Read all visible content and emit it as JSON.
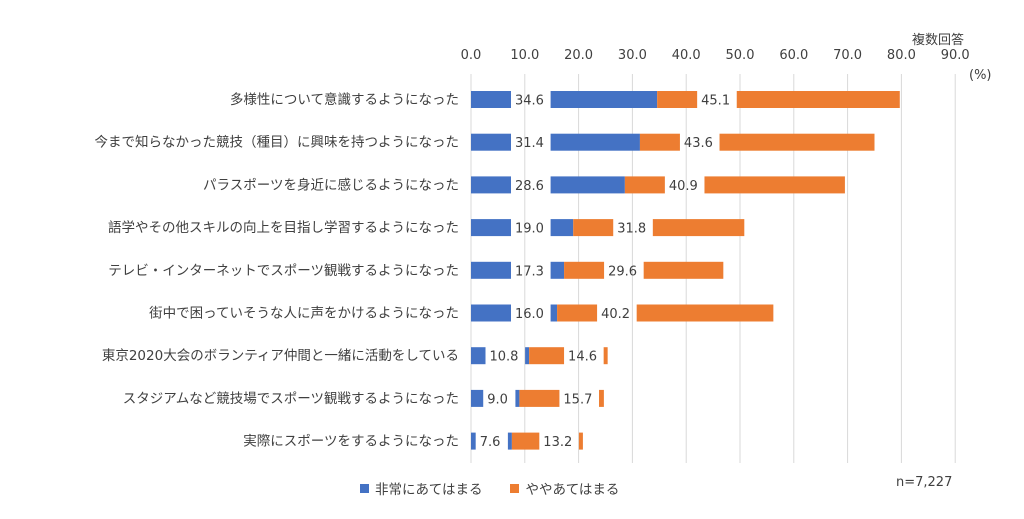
{
  "notes": {
    "multiple_answer": "複数回答",
    "unit": "(%)",
    "sample": "n=7,227"
  },
  "colors": {
    "series1": "#4472C4",
    "series2": "#ED7D31",
    "grid": "#D9D9D9"
  },
  "chart_data": {
    "type": "bar",
    "orientation": "horizontal",
    "stacked": true,
    "xlim": [
      0,
      90
    ],
    "xticks": [
      "0.0",
      "10.0",
      "20.0",
      "30.0",
      "40.0",
      "50.0",
      "60.0",
      "70.0",
      "80.0",
      "90.0"
    ],
    "grid": true,
    "legend_position": "bottom",
    "categories": [
      "多様性について意識するようになった",
      "今まで知らなかった競技（種目）に興味を持つようになった",
      "パラスポーツを身近に感じるようになった",
      "語学やその他スキルの向上を目指し学習するようになった",
      "テレビ・インターネットでスポーツ観戦するようになった",
      "街中で困っていそうな人に声をかけるようになった",
      "東京2020大会のボランティア仲間と一緒に活動をしている",
      "スタジアムなど競技場でスポーツ観戦するようになった",
      "実際にスポーツをするようになった"
    ],
    "series": [
      {
        "name": "非常にあてはまる",
        "values": [
          34.6,
          31.4,
          28.6,
          19.0,
          17.3,
          16.0,
          10.8,
          9.0,
          7.6
        ],
        "labels": [
          "34.6",
          "31.4",
          "28.6",
          "19.0",
          "17.3",
          "16.0",
          "10.8",
          "9.0",
          "7.6"
        ]
      },
      {
        "name": "ややあてはまる",
        "values": [
          45.1,
          43.6,
          40.9,
          31.8,
          29.6,
          40.2,
          14.6,
          15.7,
          13.2
        ],
        "labels": [
          "45.1",
          "43.6",
          "40.9",
          "31.8",
          "29.6",
          "40.2",
          "14.6",
          "15.7",
          "13.2"
        ]
      }
    ]
  }
}
